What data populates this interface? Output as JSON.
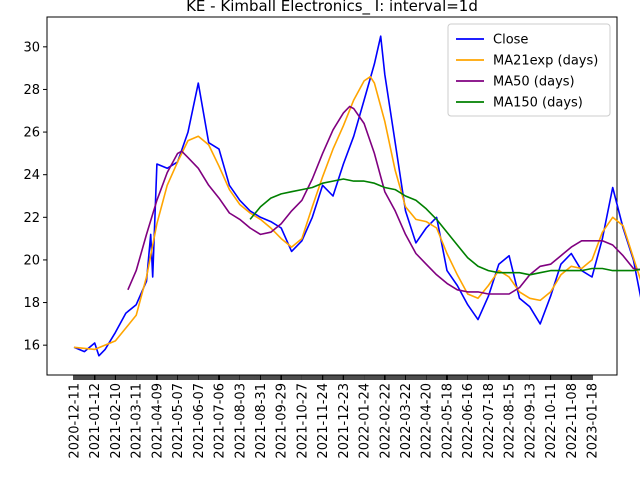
{
  "chart_data": {
    "type": "line",
    "title": "KE - Kimball Electronics_ I: interval=1d",
    "xlabel": "",
    "ylabel": "",
    "ylim": [
      14.6,
      31.4
    ],
    "y_ticks": [
      16,
      18,
      20,
      22,
      24,
      26,
      28,
      30
    ],
    "x_tick_labels": [
      "2020-12-11",
      "2021-01-12",
      "2021-02-10",
      "2021-03-11",
      "2021-04-09",
      "2021-05-07",
      "2021-06-07",
      "2021-07-06",
      "2021-08-03",
      "2021-08-31",
      "2021-09-29",
      "2021-10-27",
      "2021-11-24",
      "2021-12-23",
      "2022-01-24",
      "2022-02-22",
      "2022-03-22",
      "2022-04-20",
      "2022-05-18",
      "2022-06-16",
      "2022-07-18",
      "2022-08-15",
      "2022-09-13",
      "2022-10-11",
      "2022-11-08",
      "2023-01-18"
    ],
    "grid": false,
    "legend_position": "upper right",
    "series": [
      {
        "name": "Close",
        "color": "#0000ff",
        "points": [
          [
            0,
            15.9
          ],
          [
            0.5,
            15.7
          ],
          [
            1,
            16.1
          ],
          [
            1.2,
            15.5
          ],
          [
            1.5,
            15.8
          ],
          [
            2,
            16.6
          ],
          [
            2.5,
            17.5
          ],
          [
            3,
            17.9
          ],
          [
            3.5,
            19
          ],
          [
            3.7,
            21.2
          ],
          [
            3.8,
            19.2
          ],
          [
            4,
            24.5
          ],
          [
            4.5,
            24.3
          ],
          [
            5,
            24.6
          ],
          [
            5.5,
            26
          ],
          [
            6,
            28.3
          ],
          [
            6.5,
            25.5
          ],
          [
            7,
            25.2
          ],
          [
            7.5,
            23.5
          ],
          [
            8,
            22.8
          ],
          [
            8.5,
            22.3
          ],
          [
            9,
            22
          ],
          [
            9.5,
            21.8
          ],
          [
            10,
            21.5
          ],
          [
            10.5,
            20.4
          ],
          [
            11,
            20.9
          ],
          [
            11.5,
            22
          ],
          [
            12,
            23.5
          ],
          [
            12.5,
            23
          ],
          [
            13,
            24.5
          ],
          [
            13.5,
            25.8
          ],
          [
            14,
            27.5
          ],
          [
            14.5,
            29.2
          ],
          [
            14.8,
            30.5
          ],
          [
            15,
            28.7
          ],
          [
            15.5,
            25.5
          ],
          [
            16,
            22.3
          ],
          [
            16.5,
            20.8
          ],
          [
            17,
            21.5
          ],
          [
            17.5,
            22
          ],
          [
            18,
            19.5
          ],
          [
            18.5,
            18.8
          ],
          [
            19,
            17.9
          ],
          [
            19.5,
            17.2
          ],
          [
            20,
            18.3
          ],
          [
            20.5,
            19.8
          ],
          [
            21,
            20.2
          ],
          [
            21.5,
            18.2
          ],
          [
            22,
            17.8
          ],
          [
            22.5,
            17
          ],
          [
            23,
            18.3
          ],
          [
            23.5,
            19.8
          ],
          [
            24,
            20.3
          ],
          [
            24.5,
            19.5
          ],
          [
            25,
            19.2
          ],
          [
            25.5,
            21
          ],
          [
            26,
            23.4
          ],
          [
            26.5,
            21.5
          ],
          [
            27,
            20
          ],
          [
            27.5,
            17.5
          ],
          [
            28,
            18.5
          ],
          [
            28.5,
            22.2
          ],
          [
            29,
            23
          ],
          [
            29.5,
            23
          ]
        ]
      },
      {
        "name": "MA21exp (days)",
        "color": "#ffa500",
        "points": [
          [
            0,
            15.9
          ],
          [
            1,
            15.8
          ],
          [
            2,
            16.2
          ],
          [
            3,
            17.4
          ],
          [
            3.5,
            19.2
          ],
          [
            4,
            21.7
          ],
          [
            4.5,
            23.5
          ],
          [
            5,
            24.6
          ],
          [
            5.5,
            25.6
          ],
          [
            6,
            25.8
          ],
          [
            6.5,
            25.4
          ],
          [
            7,
            24.4
          ],
          [
            7.5,
            23.3
          ],
          [
            8,
            22.6
          ],
          [
            8.5,
            22.2
          ],
          [
            9,
            21.9
          ],
          [
            9.5,
            21.5
          ],
          [
            10,
            21
          ],
          [
            10.5,
            20.6
          ],
          [
            11,
            21
          ],
          [
            11.5,
            22.5
          ],
          [
            12,
            23.9
          ],
          [
            12.5,
            25.2
          ],
          [
            13,
            26.3
          ],
          [
            13.5,
            27.5
          ],
          [
            14,
            28.4
          ],
          [
            14.3,
            28.6
          ],
          [
            14.5,
            28.3
          ],
          [
            15,
            26.5
          ],
          [
            15.5,
            24.2
          ],
          [
            16,
            22.5
          ],
          [
            16.5,
            21.9
          ],
          [
            17,
            21.8
          ],
          [
            17.5,
            21.5
          ],
          [
            18,
            20.3
          ],
          [
            18.5,
            19.3
          ],
          [
            19,
            18.4
          ],
          [
            19.5,
            18.2
          ],
          [
            20,
            18.8
          ],
          [
            20.5,
            19.5
          ],
          [
            21,
            19.2
          ],
          [
            21.5,
            18.5
          ],
          [
            22,
            18.2
          ],
          [
            22.5,
            18.1
          ],
          [
            23,
            18.5
          ],
          [
            23.5,
            19.3
          ],
          [
            24,
            19.7
          ],
          [
            24.5,
            19.6
          ],
          [
            25,
            20
          ],
          [
            25.5,
            21.3
          ],
          [
            26,
            22
          ],
          [
            26.5,
            21.6
          ],
          [
            27,
            20.1
          ],
          [
            27.5,
            18.6
          ],
          [
            28,
            18.6
          ],
          [
            28.5,
            20
          ],
          [
            29,
            21.6
          ],
          [
            29.5,
            22.5
          ]
        ]
      },
      {
        "name": "MA50 (days)",
        "color": "#800080",
        "points": [
          [
            2.6,
            18.6
          ],
          [
            3,
            19.5
          ],
          [
            3.5,
            21.2
          ],
          [
            4,
            22.8
          ],
          [
            4.5,
            24.1
          ],
          [
            5,
            25
          ],
          [
            5.2,
            25.1
          ],
          [
            5.5,
            24.8
          ],
          [
            6,
            24.3
          ],
          [
            6.5,
            23.5
          ],
          [
            7,
            22.9
          ],
          [
            7.5,
            22.2
          ],
          [
            8,
            21.9
          ],
          [
            8.5,
            21.5
          ],
          [
            9,
            21.2
          ],
          [
            9.5,
            21.3
          ],
          [
            10,
            21.7
          ],
          [
            10.5,
            22.3
          ],
          [
            11,
            22.8
          ],
          [
            11.5,
            23.8
          ],
          [
            12,
            25
          ],
          [
            12.5,
            26.1
          ],
          [
            13,
            26.9
          ],
          [
            13.3,
            27.2
          ],
          [
            13.5,
            27.1
          ],
          [
            14,
            26.4
          ],
          [
            14.5,
            25
          ],
          [
            15,
            23.2
          ],
          [
            15.5,
            22.3
          ],
          [
            16,
            21.2
          ],
          [
            16.5,
            20.3
          ],
          [
            17,
            19.8
          ],
          [
            17.5,
            19.3
          ],
          [
            18,
            18.9
          ],
          [
            18.5,
            18.6
          ],
          [
            19,
            18.5
          ],
          [
            19.5,
            18.5
          ],
          [
            20,
            18.4
          ],
          [
            20.5,
            18.4
          ],
          [
            21,
            18.4
          ],
          [
            21.5,
            18.7
          ],
          [
            22,
            19.3
          ],
          [
            22.5,
            19.7
          ],
          [
            23,
            19.8
          ],
          [
            23.5,
            20.2
          ],
          [
            24,
            20.6
          ],
          [
            24.5,
            20.9
          ],
          [
            25,
            20.9
          ],
          [
            25.5,
            20.9
          ],
          [
            26,
            20.7
          ],
          [
            26.5,
            20.2
          ],
          [
            27,
            19.6
          ],
          [
            27.5,
            19.5
          ],
          [
            28,
            19.5
          ],
          [
            28.5,
            19.8
          ],
          [
            29,
            20.1
          ],
          [
            29.5,
            20.6
          ]
        ]
      },
      {
        "name": "MA150 (days)",
        "color": "#008000",
        "points": [
          [
            8.5,
            21.9
          ],
          [
            9,
            22.5
          ],
          [
            9.5,
            22.9
          ],
          [
            10,
            23.1
          ],
          [
            10.5,
            23.2
          ],
          [
            11,
            23.3
          ],
          [
            11.5,
            23.4
          ],
          [
            12,
            23.6
          ],
          [
            12.5,
            23.7
          ],
          [
            13,
            23.8
          ],
          [
            13.5,
            23.7
          ],
          [
            14,
            23.7
          ],
          [
            14.5,
            23.6
          ],
          [
            15,
            23.4
          ],
          [
            15.5,
            23.3
          ],
          [
            16,
            23
          ],
          [
            16.5,
            22.8
          ],
          [
            17,
            22.4
          ],
          [
            17.5,
            21.9
          ],
          [
            18,
            21.3
          ],
          [
            18.5,
            20.7
          ],
          [
            19,
            20.1
          ],
          [
            19.5,
            19.7
          ],
          [
            20,
            19.5
          ],
          [
            20.5,
            19.4
          ],
          [
            21,
            19.4
          ],
          [
            21.5,
            19.4
          ],
          [
            22,
            19.3
          ],
          [
            22.5,
            19.4
          ],
          [
            23,
            19.5
          ],
          [
            23.5,
            19.5
          ],
          [
            24,
            19.5
          ],
          [
            24.5,
            19.5
          ],
          [
            25,
            19.6
          ],
          [
            25.5,
            19.6
          ],
          [
            26,
            19.5
          ],
          [
            26.5,
            19.5
          ],
          [
            27,
            19.5
          ],
          [
            27.5,
            19.6
          ],
          [
            28,
            19.8
          ],
          [
            28.5,
            20
          ],
          [
            29,
            20.2
          ]
        ]
      }
    ]
  }
}
